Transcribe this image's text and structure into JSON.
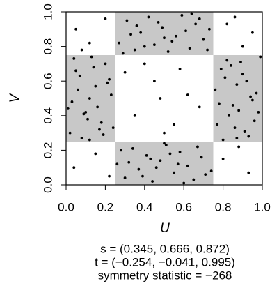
{
  "chart_data": {
    "type": "scatter",
    "x_label": "U",
    "y_label": "V",
    "xlim": [
      0,
      1
    ],
    "ylim": [
      0,
      1
    ],
    "xticks": [
      {
        "value": 0,
        "label": "0.0"
      },
      0.2,
      0.4,
      0.6,
      0.8,
      {
        "value": 1,
        "label": "1.0"
      }
    ],
    "yticks": [
      {
        "value": 0,
        "label": "0.0"
      },
      0.2,
      0.4,
      0.6,
      0.8,
      {
        "value": 1,
        "label": "1.0"
      }
    ],
    "shaded_regions": [
      [
        0.25,
        0.75,
        0.75,
        1
      ],
      [
        0.25,
        0.75,
        0,
        0.25
      ],
      [
        0,
        0.25,
        0.25,
        0.75
      ],
      [
        0.75,
        1,
        0.25,
        0.75
      ]
    ],
    "shade_color": "#c8c8c8",
    "annotations": [
      "s = (0.345, 0.666, 0.872)",
      "t = (−0.254, −0.041, 0.995)",
      "symmetry statistic = −268"
    ],
    "series": [
      {
        "color": "#000000",
        "x": [
          0.27,
          0.31,
          0.35,
          0.38,
          0.42,
          0.45,
          0.49,
          0.52,
          0.56,
          0.59,
          0.63,
          0.66,
          0.7,
          0.73,
          0.29,
          0.33,
          0.4,
          0.47,
          0.54,
          0.61,
          0.68,
          0.72,
          0.36,
          0.5,
          0.64,
          0.26,
          0.3,
          0.34,
          0.37,
          0.41,
          0.44,
          0.48,
          0.51,
          0.55,
          0.58,
          0.62,
          0.65,
          0.69,
          0.74,
          0.28,
          0.32,
          0.39,
          0.46,
          0.53,
          0.6,
          0.67,
          0.71,
          0.43,
          0.5,
          0.57,
          0.02,
          0.06,
          0.1,
          0.14,
          0.18,
          0.22,
          0.04,
          0.08,
          0.12,
          0.16,
          0.2,
          0.24,
          0.03,
          0.07,
          0.11,
          0.15,
          0.19,
          0.23,
          0.05,
          0.09,
          0.13,
          0.17,
          0.21,
          0.01,
          0.12,
          0.77,
          0.81,
          0.85,
          0.89,
          0.93,
          0.97,
          0.79,
          0.83,
          0.87,
          0.91,
          0.95,
          0.99,
          0.76,
          0.8,
          0.84,
          0.88,
          0.92,
          0.96,
          0.78,
          0.82,
          0.86,
          0.9,
          0.94,
          0.98,
          0.87,
          0.05,
          0.12,
          0.2,
          0.08,
          0.82,
          0.9,
          0.95,
          0.86,
          0.04,
          0.15,
          0.22,
          0.8,
          0.93,
          0.88,
          0.35,
          0.45,
          0.55,
          0.62,
          0.3,
          0.5,
          0.68,
          0.4,
          0.58,
          0.48
        ],
        "values": [
          0.82,
          0.95,
          0.78,
          0.88,
          0.97,
          0.81,
          0.91,
          0.77,
          0.86,
          0.98,
          0.79,
          0.93,
          0.84,
          0.9,
          0.76,
          0.87,
          0.8,
          0.94,
          0.83,
          0.89,
          0.96,
          0.78,
          0.92,
          0.85,
          0.99,
          0.12,
          0.04,
          0.21,
          0.09,
          0.17,
          0.02,
          0.14,
          0.23,
          0.07,
          0.19,
          0.11,
          0.03,
          0.16,
          0.08,
          0.2,
          0.13,
          0.05,
          0.1,
          0.18,
          0.01,
          0.22,
          0.06,
          0.15,
          0.24,
          0.12,
          0.3,
          0.55,
          0.42,
          0.68,
          0.36,
          0.61,
          0.73,
          0.27,
          0.5,
          0.45,
          0.7,
          0.33,
          0.48,
          0.63,
          0.38,
          0.57,
          0.29,
          0.52,
          0.66,
          0.41,
          0.74,
          0.32,
          0.59,
          0.44,
          0.26,
          0.35,
          0.62,
          0.46,
          0.71,
          0.28,
          0.53,
          0.67,
          0.4,
          0.58,
          0.31,
          0.49,
          0.74,
          0.55,
          0.26,
          0.69,
          0.43,
          0.6,
          0.37,
          0.47,
          0.72,
          0.33,
          0.64,
          0.51,
          0.42,
          0.27,
          0.9,
          0.82,
          0.96,
          0.78,
          0.93,
          0.8,
          0.88,
          0.97,
          0.1,
          0.18,
          0.05,
          0.15,
          0.07,
          0.22,
          0.4,
          0.6,
          0.35,
          0.52,
          0.65,
          0.3,
          0.45,
          0.7,
          0.67,
          0.5
        ]
      }
    ]
  }
}
